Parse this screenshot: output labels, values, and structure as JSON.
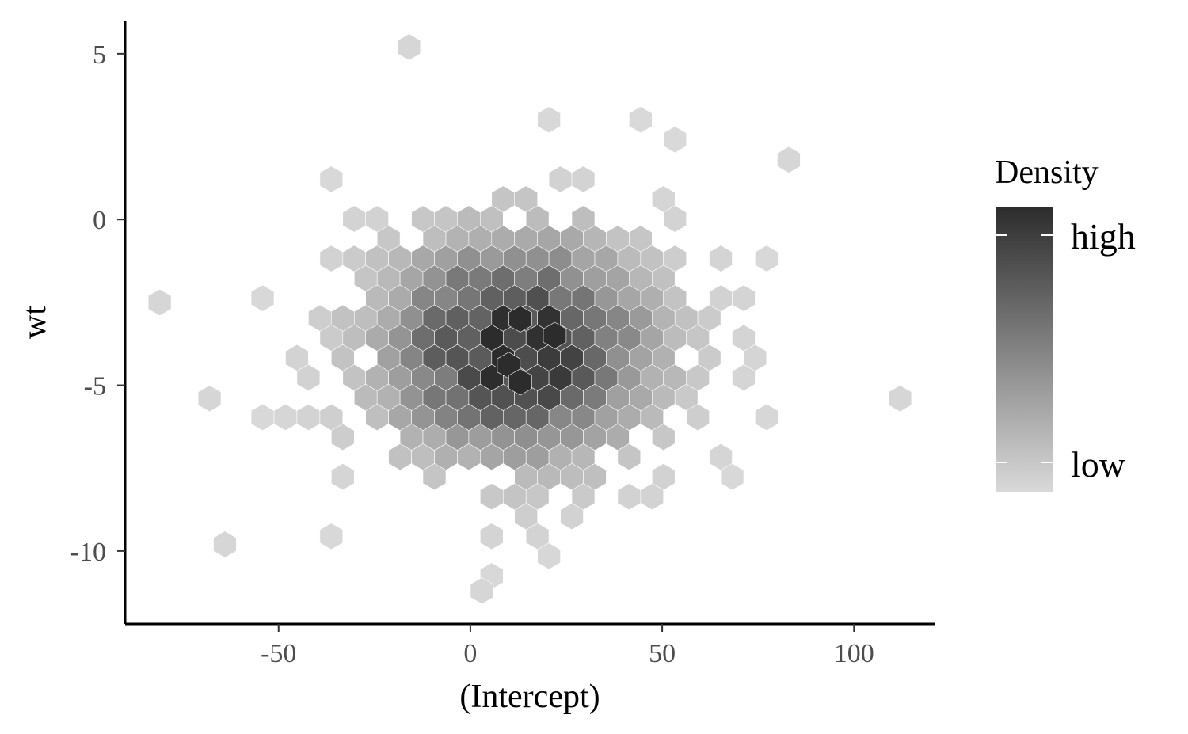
{
  "chart_data": {
    "type": "heatmap",
    "subtype": "hexbin",
    "title": "",
    "xlabel": "(Intercept)",
    "ylabel": "wt",
    "xlim": [
      -90,
      121
    ],
    "ylim": [
      -12.2,
      6.0
    ],
    "xticks": [
      -50,
      0,
      50,
      100
    ],
    "xtick_labels": [
      "-50",
      "0",
      "50",
      "100"
    ],
    "yticks": [
      5,
      0,
      -5,
      -10
    ],
    "ytick_labels": [
      "5",
      "0",
      "-5",
      "-10"
    ],
    "grid": false,
    "legend": {
      "title": "Density",
      "position": "right",
      "labels": [
        "high",
        "low"
      ],
      "color_high": "#2c2c2c",
      "color_low": "#d9d9d9"
    },
    "distribution": {
      "shape": "bivariate normal blob of hexagonal density bins",
      "center": {
        "x": 12,
        "y": -3.9
      },
      "sd": {
        "x": 26,
        "y": 2.5
      },
      "correlation": 0,
      "densest_bins": [
        {
          "x": 13,
          "y": -3.0
        },
        {
          "x": 10,
          "y": -4.4
        },
        {
          "x": 22,
          "y": -3.5
        },
        {
          "x": 13,
          "y": -4.9
        }
      ],
      "outlier_bins": [
        {
          "x": -81,
          "y": -2.5
        },
        {
          "x": -68,
          "y": -5.4
        },
        {
          "x": -16,
          "y": 5.2
        },
        {
          "x": 112,
          "y": -5.4
        },
        {
          "x": 3,
          "y": -11.2
        },
        {
          "x": -64,
          "y": -9.8
        },
        {
          "x": 83,
          "y": 1.8
        }
      ]
    }
  }
}
